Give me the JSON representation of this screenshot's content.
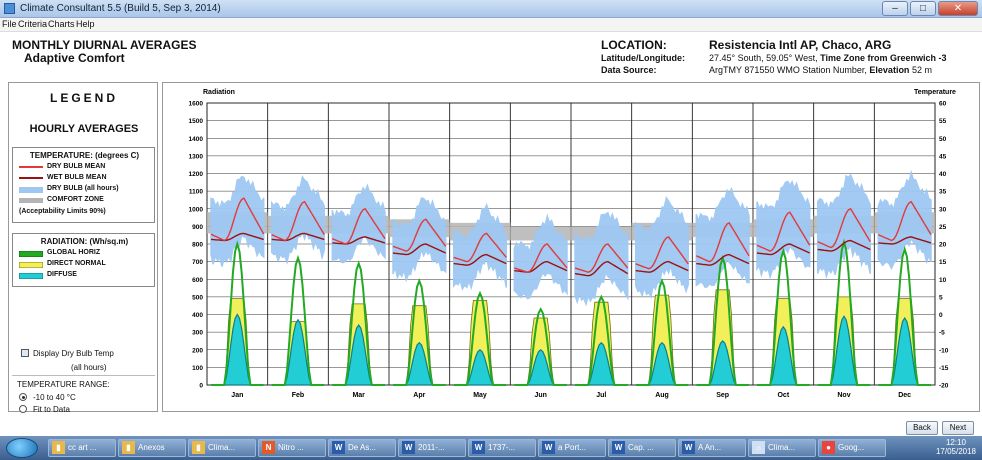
{
  "window": {
    "title": "Climate Consultant 5.5 (Build 5, Sep 3, 2014)"
  },
  "menu": [
    "File",
    "Criteria",
    "Charts",
    "Help"
  ],
  "header": {
    "title": "MONTHLY DIURNAL AVERAGES",
    "subtitle": "Adaptive Comfort"
  },
  "location": {
    "location_label": "LOCATION:",
    "location_value": "Resistencia Intl AP, Chaco, ARG",
    "latlon_label": "Latitude/Longitude:",
    "latlon_value": "27.45° South, 59.05° West,",
    "tz_label": "Time Zone from Greenwich -3",
    "source_label": "Data Source:",
    "source_value": "ArgTMY     871550 WMO Station Number,",
    "elevation_label": "Elevation",
    "elevation_value": "52 m"
  },
  "legend": {
    "title": "LEGEND",
    "hourly": "HOURLY AVERAGES",
    "temp_box_title": "TEMPERATURE: (degrees C)",
    "temp_items": [
      {
        "label": "DRY BULB MEAN",
        "color": "#e23a3a"
      },
      {
        "label": "WET BULB MEAN",
        "color": "#9a1111"
      },
      {
        "label": "DRY BULB (all hours)",
        "color": "#9ec8f2"
      },
      {
        "label": "COMFORT ZONE",
        "color": "#b4b4b4"
      },
      {
        "label": "(Acceptability Limits 90%)",
        "color": ""
      }
    ],
    "rad_box_title": "RADIATION: (Wh/sq.m)",
    "rad_items": [
      {
        "label": "GLOBAL HORIZ",
        "color": "#22aa22"
      },
      {
        "label": "DIRECT NORMAL",
        "color": "#f2f05a"
      },
      {
        "label": "DIFFUSE",
        "color": "#22cdd6"
      }
    ]
  },
  "options": {
    "display_dry_bulb": "Display Dry Bulb Temp",
    "display_dry_bulb_2": "(all hours)",
    "range_label": "TEMPERATURE RANGE:",
    "range_option1": "-10 to 40 °C",
    "range_option2": "Fit to Data"
  },
  "buttons": {
    "back": "Back",
    "next": "Next"
  },
  "chart_data": {
    "type": "line",
    "ylabel_left": "Radiation",
    "ylabel_right": "Temperature",
    "left_ticks": [
      0,
      100,
      200,
      300,
      400,
      500,
      600,
      700,
      800,
      900,
      1000,
      1100,
      1200,
      1300,
      1400,
      1500,
      1600
    ],
    "right_ticks": [
      -20,
      -15,
      -10,
      -5,
      0,
      5,
      10,
      15,
      20,
      25,
      30,
      35,
      40,
      45,
      50,
      55,
      60
    ],
    "ylim_left": [
      0,
      1600
    ],
    "ylim_right": [
      -20,
      60
    ],
    "categories": [
      "Jan",
      "Feb",
      "Mar",
      "Apr",
      "May",
      "Jun",
      "Jul",
      "Aug",
      "Sep",
      "Oct",
      "Nov",
      "Dec"
    ],
    "grid": true,
    "series": [
      {
        "name": "DRY BULB MEAN",
        "unit": "°C",
        "min": [
          21,
          21,
          20,
          18,
          15,
          12,
          12,
          13,
          15,
          18,
          19,
          21
        ],
        "max": [
          33,
          32,
          30,
          27,
          23,
          20,
          20,
          22,
          26,
          29,
          30,
          32
        ]
      },
      {
        "name": "WET BULB MEAN",
        "unit": "°C",
        "min": [
          21,
          21,
          20,
          17,
          14,
          12,
          11,
          12,
          14,
          17,
          18,
          20
        ],
        "max": [
          23,
          23,
          22,
          20,
          17,
          15,
          15,
          15,
          17,
          20,
          21,
          22
        ]
      },
      {
        "name": "DRY BULB (all hours)",
        "unit": "°C",
        "low": [
          15,
          16,
          15,
          11,
          8,
          5,
          4,
          6,
          8,
          12,
          12,
          14
        ],
        "high": [
          39,
          38,
          36,
          33,
          30,
          27,
          29,
          32,
          35,
          38,
          39,
          39
        ]
      },
      {
        "name": "COMFORT ZONE",
        "unit": "°C",
        "low": [
          23,
          23,
          23,
          22,
          21,
          21,
          21,
          21,
          22,
          22,
          23,
          23
        ],
        "high": [
          29,
          28,
          28,
          27,
          26,
          25,
          25,
          26,
          26,
          27,
          28,
          29
        ]
      },
      {
        "name": "GLOBAL HORIZ",
        "unit": "Wh/sq.m",
        "peak": [
          800,
          720,
          690,
          590,
          520,
          430,
          500,
          590,
          720,
          760,
          810,
          770
        ]
      },
      {
        "name": "DIRECT NORMAL",
        "unit": "Wh/sq.m",
        "peak": [
          490,
          360,
          460,
          450,
          480,
          380,
          470,
          510,
          540,
          490,
          500,
          490
        ]
      },
      {
        "name": "DIFFUSE",
        "unit": "Wh/sq.m",
        "peak": [
          400,
          370,
          340,
          240,
          200,
          200,
          240,
          240,
          250,
          330,
          390,
          380
        ]
      }
    ]
  },
  "taskbar": {
    "items": [
      {
        "label": "cc art ...",
        "icon": "folder-icon",
        "color": "#e8b84a"
      },
      {
        "label": "Anexos",
        "icon": "folder-icon",
        "color": "#e8b84a"
      },
      {
        "label": "Clima...",
        "icon": "folder-icon",
        "color": "#e8b84a"
      },
      {
        "label": "Nitro ...",
        "icon": "pdf-icon",
        "color": "#e25a2a"
      },
      {
        "label": "De As...",
        "icon": "word-icon",
        "color": "#2a5caa"
      },
      {
        "label": "2011-...",
        "icon": "word-icon",
        "color": "#2a5caa"
      },
      {
        "label": "1737-...",
        "icon": "word-icon",
        "color": "#2a5caa"
      },
      {
        "label": "a Port...",
        "icon": "word-icon",
        "color": "#2a5caa"
      },
      {
        "label": "Cap. ...",
        "icon": "word-icon",
        "color": "#2a5caa"
      },
      {
        "label": "A An...",
        "icon": "word-icon",
        "color": "#2a5caa"
      },
      {
        "label": "Clima...",
        "icon": "app-icon",
        "color": "#cfe0f4"
      },
      {
        "label": "Goog...",
        "icon": "chrome-icon",
        "color": "#e8453c"
      }
    ],
    "clock_time": "12:10",
    "clock_date": "17/05/2018"
  }
}
